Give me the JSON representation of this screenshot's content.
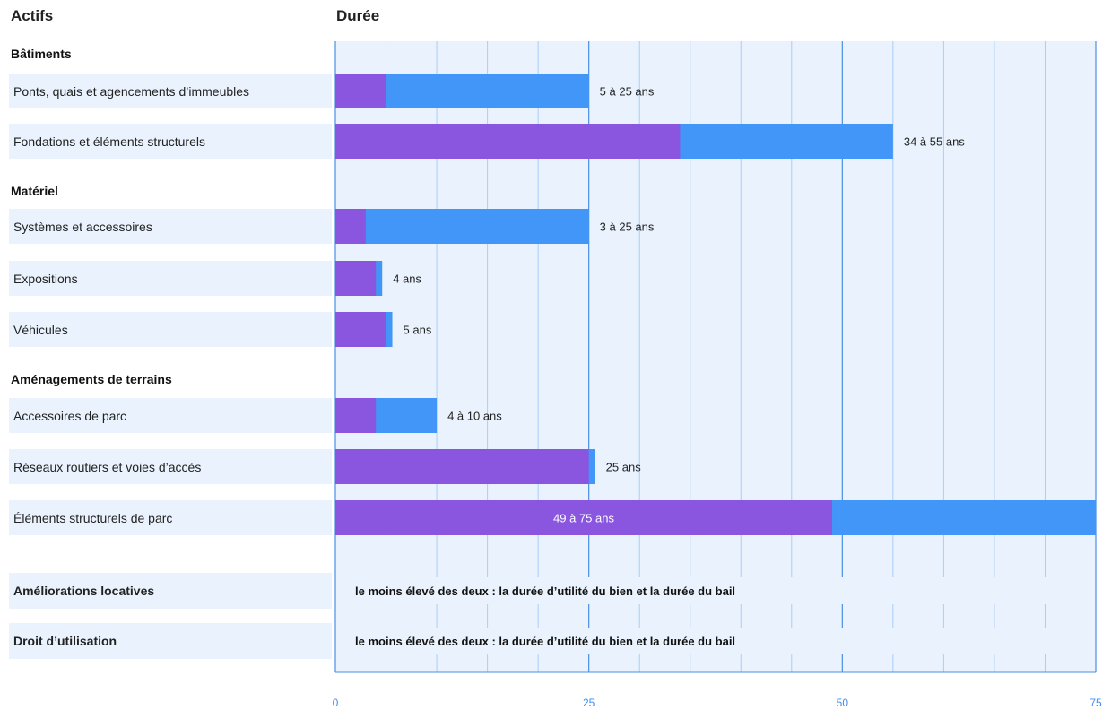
{
  "header": {
    "left": "Actifs",
    "right": "Durée"
  },
  "colors": {
    "min": "#8a56e0",
    "max": "#4296f8",
    "panel": "#eaf3fd",
    "grid_major": "#4a8fe6",
    "grid_minor": "#a9cdf7"
  },
  "chart_data": {
    "type": "bar",
    "orientation": "horizontal",
    "stacked": true,
    "xlim": [
      0,
      75
    ],
    "xticks": [
      "0",
      "25",
      "50",
      "75"
    ],
    "groups": [
      {
        "name": "Bâtiments",
        "rows": [
          {
            "label": "Ponts, quais et agencements d’immeubles",
            "min": 5,
            "max": 25,
            "text": "5 à 25 ans"
          },
          {
            "label": "Fondations et éléments structurels",
            "min": 34,
            "max": 55,
            "text": "34 à 55 ans"
          }
        ]
      },
      {
        "name": "Matériel",
        "rows": [
          {
            "label": "Systèmes et accessoires",
            "min": 3,
            "max": 25,
            "text": "3 à 25 ans"
          },
          {
            "label": "Expositions",
            "min": 4,
            "max": 4,
            "text": "4 ans"
          },
          {
            "label": "Véhicules",
            "min": 5,
            "max": 5,
            "text": "5 ans"
          }
        ]
      },
      {
        "name": "Aménagements de terrains",
        "rows": [
          {
            "label": "Accessoires de parc",
            "min": 4,
            "max": 10,
            "text": "4 à 10 ans"
          },
          {
            "label": "Réseaux routiers et voies d’accès",
            "min": 25,
            "max": 25,
            "text": "25 ans"
          },
          {
            "label": "Éléments structurels de parc",
            "min": 49,
            "max": 75,
            "text": "49 à 75 ans"
          }
        ]
      }
    ],
    "notes": [
      {
        "label": "Améliorations locatives",
        "text": "le moins élevé des deux : la durée d’utilité du bien et la durée du bail"
      },
      {
        "label": "Droit d’utilisation",
        "text": "le moins élevé des deux : la durée d’utilité du bien et la durée du bail"
      }
    ]
  }
}
